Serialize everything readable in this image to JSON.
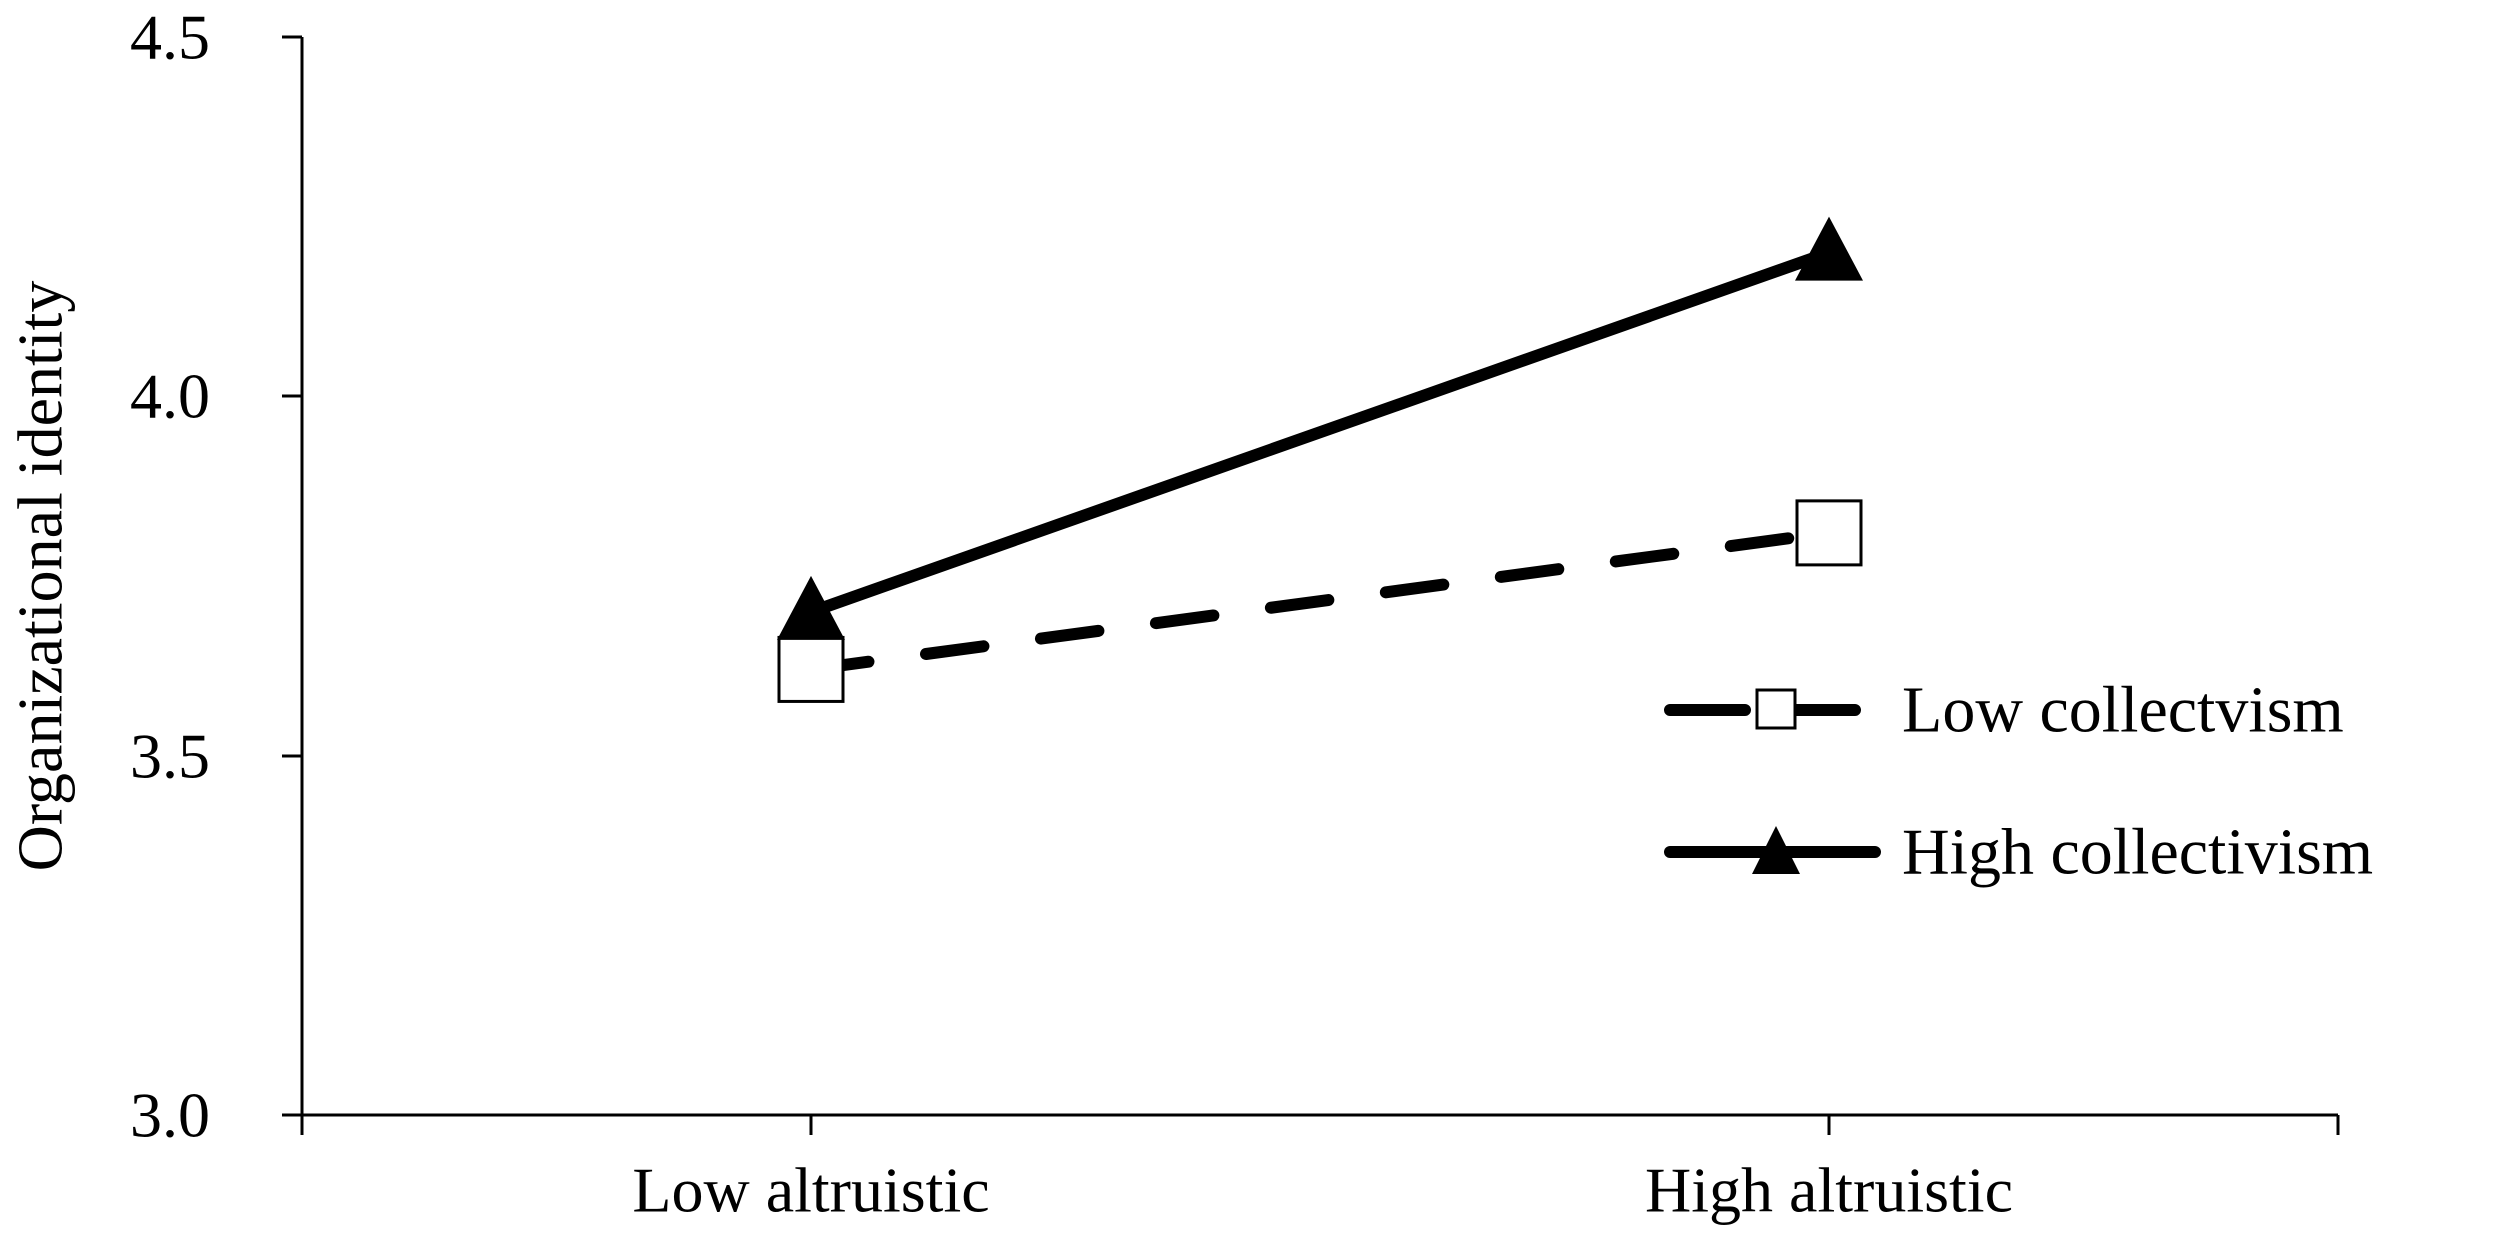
{
  "chart_data": {
    "type": "line",
    "title": "",
    "xlabel": "",
    "ylabel": "Organizational identity",
    "ylim": [
      3.0,
      4.5
    ],
    "yticks": [
      "3.0",
      "3.5",
      "4.0",
      "4.5"
    ],
    "categories": [
      "Low altruistic",
      "High altruistic"
    ],
    "grid": false,
    "legend_position": "right",
    "series": [
      {
        "name": "Low collectvism",
        "values": [
          3.62,
          3.81
        ],
        "marker": "open-square",
        "line_style": "dashed",
        "color": "#000000"
      },
      {
        "name": "High collectivism",
        "values": [
          3.7,
          4.2
        ],
        "marker": "filled-triangle",
        "line_style": "solid",
        "color": "#000000"
      }
    ]
  }
}
